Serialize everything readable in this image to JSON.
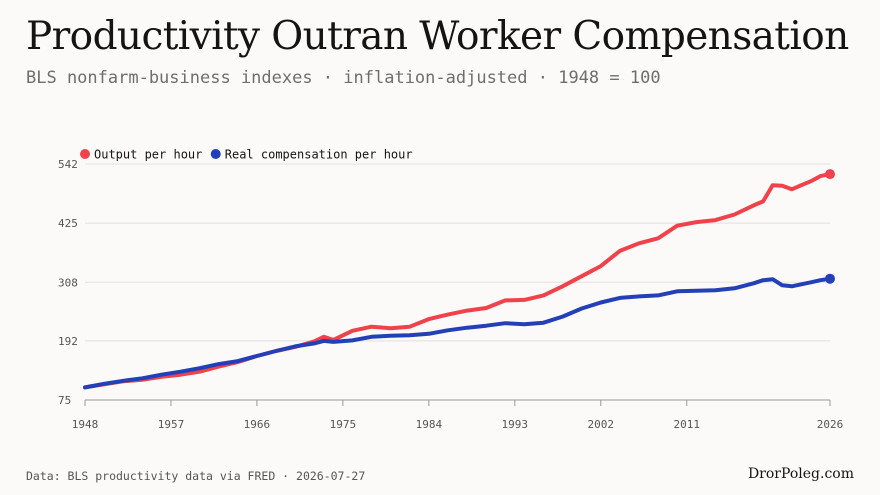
{
  "header": {
    "title": "Productivity Outran Worker Compensation",
    "subtitle": "BLS nonfarm-business indexes · inflation-adjusted · 1948 = 100"
  },
  "footer": {
    "source": "Data: BLS productivity data via FRED · 2026-07-27",
    "brand": "DrorPoleg.com"
  },
  "chart_data": {
    "type": "line",
    "xlim": [
      1948,
      2026
    ],
    "ylim": [
      75,
      542
    ],
    "xticks": [
      1948,
      1957,
      1966,
      1975,
      1984,
      1993,
      2002,
      2011,
      2026
    ],
    "yticks": [
      75,
      192,
      308,
      425,
      542
    ],
    "grid": true,
    "legend": "top-left",
    "series": [
      {
        "name": "Output per hour",
        "color": "#f0424b",
        "x": [
          1948,
          1950,
          1952,
          1954,
          1956,
          1958,
          1960,
          1962,
          1964,
          1966,
          1968,
          1970,
          1972,
          1973,
          1974,
          1976,
          1978,
          1980,
          1982,
          1984,
          1986,
          1988,
          1990,
          1992,
          1994,
          1996,
          1998,
          2000,
          2002,
          2004,
          2006,
          2008,
          2010,
          2012,
          2014,
          2016,
          2018,
          2019,
          2020,
          2021,
          2022,
          2023,
          2024,
          2025,
          2026
        ],
        "values": [
          100,
          106,
          112,
          115,
          121,
          125,
          131,
          141,
          150,
          162,
          172,
          180,
          191,
          200,
          194,
          212,
          220,
          217,
          220,
          235,
          244,
          252,
          257,
          272,
          273,
          282,
          300,
          320,
          340,
          370,
          385,
          395,
          420,
          427,
          431,
          442,
          460,
          468,
          500,
          499,
          492,
          500,
          508,
          518,
          522
        ]
      },
      {
        "name": "Real compensation per hour",
        "color": "#2340b8",
        "x": [
          1948,
          1950,
          1952,
          1954,
          1956,
          1958,
          1960,
          1962,
          1964,
          1966,
          1968,
          1970,
          1972,
          1973,
          1974,
          1976,
          1978,
          1980,
          1982,
          1984,
          1986,
          1988,
          1990,
          1992,
          1994,
          1996,
          1998,
          2000,
          2002,
          2004,
          2006,
          2008,
          2010,
          2012,
          2014,
          2016,
          2018,
          2019,
          2020,
          2021,
          2022,
          2023,
          2024,
          2025,
          2026
        ],
        "values": [
          100,
          107,
          113,
          118,
          125,
          131,
          138,
          146,
          152,
          162,
          172,
          181,
          187,
          192,
          190,
          193,
          200,
          202,
          203,
          206,
          213,
          218,
          222,
          227,
          225,
          228,
          240,
          256,
          268,
          277,
          280,
          282,
          290,
          291,
          292,
          296,
          306,
          312,
          314,
          302,
          300,
          304,
          308,
          312,
          315
        ]
      }
    ]
  }
}
